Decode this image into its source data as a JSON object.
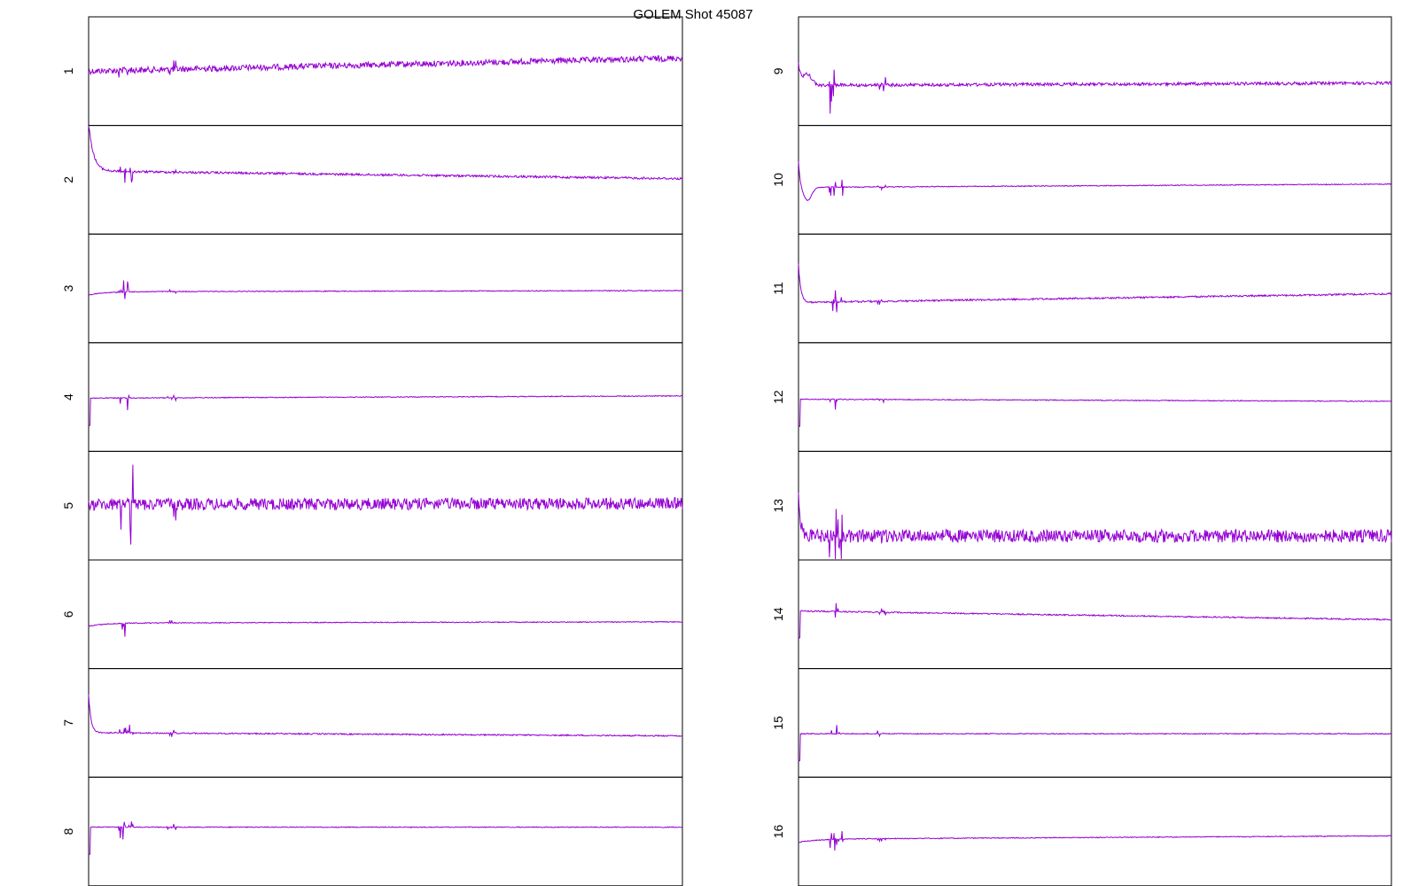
{
  "chart_data": {
    "type": "line",
    "title": "GOLEM Shot 45087",
    "color": "#9400D3",
    "panels": [
      {
        "label": "1",
        "baseline": 0.5,
        "drift": -0.12,
        "noise": 0.028,
        "spike": 0.3,
        "transient": "none"
      },
      {
        "label": "2",
        "baseline": 0.42,
        "drift": 0.07,
        "noise": 0.01,
        "spike": 0.12,
        "transient": "rise"
      },
      {
        "label": "3",
        "baseline": 0.53,
        "drift": -0.01,
        "noise": 0.004,
        "spike": 0.12,
        "transient": "small-dip"
      },
      {
        "label": "4",
        "baseline": 0.51,
        "drift": -0.02,
        "noise": 0.004,
        "spike": 0.12,
        "transient": "spike-down"
      },
      {
        "label": "5",
        "baseline": 0.49,
        "drift": -0.01,
        "noise": 0.055,
        "spike": 0.45,
        "transient": "none"
      },
      {
        "label": "6",
        "baseline": 0.58,
        "drift": -0.01,
        "noise": 0.004,
        "spike": 0.12,
        "transient": "small-dip"
      },
      {
        "label": "7",
        "baseline": 0.59,
        "drift": 0.03,
        "noise": 0.006,
        "spike": 0.12,
        "transient": "overshoot"
      },
      {
        "label": "8",
        "baseline": 0.46,
        "drift": 0.0,
        "noise": 0.004,
        "spike": 0.12,
        "transient": "spike-down"
      },
      {
        "label": "9",
        "baseline": 0.63,
        "drift": -0.02,
        "noise": 0.014,
        "spike": 0.3,
        "transient": "hump"
      },
      {
        "label": "10",
        "baseline": 0.57,
        "drift": -0.03,
        "noise": 0.004,
        "spike": 0.1,
        "transient": "dip"
      },
      {
        "label": "11",
        "baseline": 0.63,
        "drift": -0.08,
        "noise": 0.008,
        "spike": 0.12,
        "transient": "overshoot"
      },
      {
        "label": "12",
        "baseline": 0.52,
        "drift": 0.02,
        "noise": 0.004,
        "spike": 0.1,
        "transient": "spike-down"
      },
      {
        "label": "13",
        "baseline": 0.78,
        "drift": 0.0,
        "noise": 0.06,
        "spike": 0.3,
        "transient": "overshoot"
      },
      {
        "label": "14",
        "baseline": 0.47,
        "drift": 0.08,
        "noise": 0.006,
        "spike": 0.12,
        "transient": "spike-down"
      },
      {
        "label": "15",
        "baseline": 0.6,
        "drift": 0.0,
        "noise": 0.004,
        "spike": 0.12,
        "transient": "spike-down"
      },
      {
        "label": "16",
        "baseline": 0.57,
        "drift": -0.03,
        "noise": 0.004,
        "spike": 0.1,
        "transient": "small-dip"
      }
    ]
  }
}
